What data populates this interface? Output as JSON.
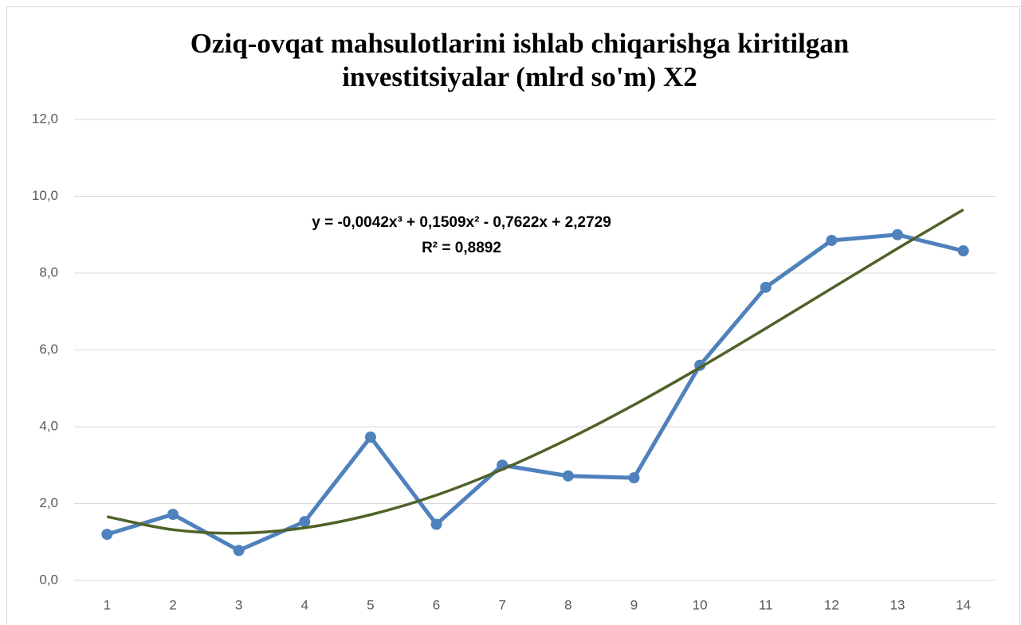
{
  "chart_data": {
    "type": "line",
    "title": [
      "Oziq-ovqat mahsulotlarini ishlab chiqarishga kiritilgan",
      "investitsiyalar (mlrd so'm) X2"
    ],
    "annotation": [
      "y = -0,0042x³ + 0,1509x² - 0,7622x + 2,2729",
      "R² = 0,8892"
    ],
    "categories": [
      "1",
      "2",
      "3",
      "4",
      "5",
      "6",
      "7",
      "8",
      "9",
      "10",
      "11",
      "12",
      "13",
      "14"
    ],
    "series": [
      {
        "color": "#4f81bd",
        "values": [
          1.2,
          1.72,
          0.78,
          1.53,
          3.73,
          1.46,
          3.0,
          2.72,
          2.67,
          5.6,
          7.63,
          8.85,
          9.0,
          8.58
        ]
      }
    ],
    "trendline": {
      "type": "polynomial",
      "color": "#4f6228",
      "values": [
        1.66,
        1.32,
        1.23,
        1.37,
        1.71,
        2.22,
        2.89,
        3.68,
        4.57,
        5.54,
        6.56,
        7.6,
        8.64,
        9.65
      ]
    },
    "ylim": [
      0,
      12
    ],
    "yticks": [
      {
        "value": 0,
        "label": "0,0"
      },
      {
        "value": 2,
        "label": "2,0"
      },
      {
        "value": 4,
        "label": "4,0"
      },
      {
        "value": 6,
        "label": "6,0"
      },
      {
        "value": 8,
        "label": "8,0"
      },
      {
        "value": 10,
        "label": "10,0"
      },
      {
        "value": 12,
        "label": "12,0"
      }
    ],
    "grid": true
  }
}
